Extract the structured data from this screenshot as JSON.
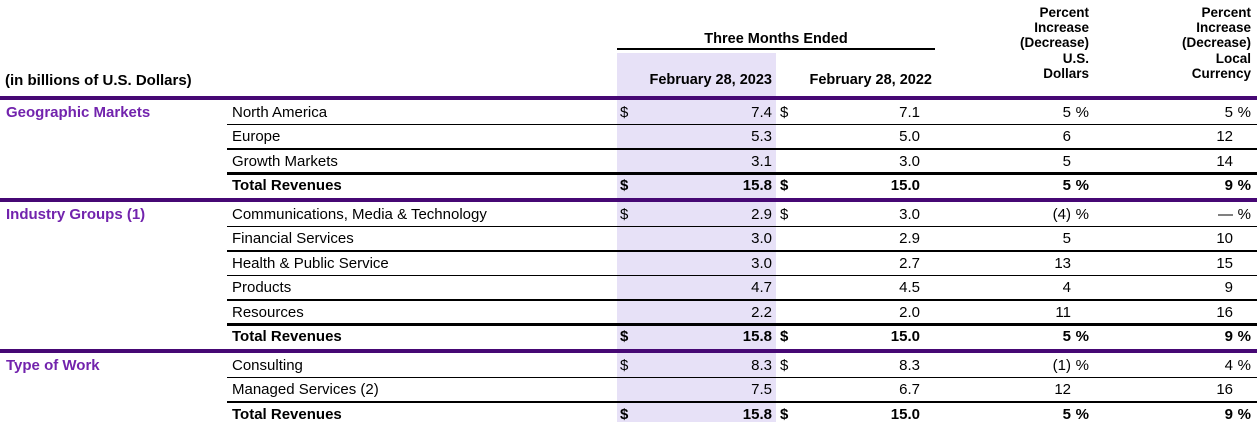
{
  "colors": {
    "section_text": "#7223AD",
    "rule_purple": "#460874",
    "column_highlight": "#E7E1F7",
    "row_line": "#000000"
  },
  "table": {
    "unit_label": "(in billions of U.S. Dollars)",
    "period_header": "Three Months Ended",
    "col_2023": "February 28, 2023",
    "col_2022": "February 28, 2022",
    "pct_usd_header_lines": [
      "Percent",
      "Increase",
      "(Decrease)",
      "U.S.",
      "Dollars"
    ],
    "pct_local_header_lines": [
      "Percent",
      "Increase",
      "(Decrease)",
      "Local",
      "Currency"
    ],
    "sections": [
      {
        "name": "Geographic Markets",
        "rows": [
          {
            "label": "North America",
            "d1": "$",
            "v1": "7.4",
            "d2": "$",
            "v2": "7.1",
            "p1": "5",
            "s1": "%",
            "p2": "5",
            "s2": "%"
          },
          {
            "label": "Europe",
            "v1": "5.3",
            "v2": "5.0",
            "p1": "6",
            "p2": "12"
          },
          {
            "label": "Growth Markets",
            "v1": "3.1",
            "v2": "3.0",
            "p1": "5",
            "p2": "14"
          },
          {
            "label": "Total Revenues",
            "d1": "$",
            "v1": "15.8",
            "d2": "$",
            "v2": "15.0",
            "p1": "5",
            "s1": "%",
            "p2": "9",
            "s2": "%"
          }
        ]
      },
      {
        "name": "Industry Groups (1)",
        "rows": [
          {
            "label": "Communications, Media & Technology",
            "d1": "$",
            "v1": "2.9",
            "d2": "$",
            "v2": "3.0",
            "p1": "(4)",
            "s1": "%",
            "p2": "—",
            "s2": "%"
          },
          {
            "label": "Financial Services",
            "v1": "3.0",
            "v2": "2.9",
            "p1": "5",
            "p2": "10"
          },
          {
            "label": "Health & Public Service",
            "v1": "3.0",
            "v2": "2.7",
            "p1": "13",
            "p2": "15"
          },
          {
            "label": "Products",
            "v1": "4.7",
            "v2": "4.5",
            "p1": "4",
            "p2": "9"
          },
          {
            "label": "Resources",
            "v1": "2.2",
            "v2": "2.0",
            "p1": "11",
            "p2": "16"
          },
          {
            "label": "Total Revenues",
            "d1": "$",
            "v1": "15.8",
            "d2": "$",
            "v2": "15.0",
            "p1": "5",
            "s1": "%",
            "p2": "9",
            "s2": "%"
          }
        ]
      },
      {
        "name": "Type of Work",
        "rows": [
          {
            "label": "Consulting",
            "d1": "$",
            "v1": "8.3",
            "d2": "$",
            "v2": "8.3",
            "p1": "(1)",
            "s1": "%",
            "p2": "4",
            "s2": "%"
          },
          {
            "label": "Managed Services (2)",
            "v1": "7.5",
            "v2": "6.7",
            "p1": "12",
            "p2": "16"
          },
          {
            "label": "Total Revenues",
            "d1": "$",
            "v1": "15.8",
            "d2": "$",
            "v2": "15.0",
            "p1": "5",
            "s1": "%",
            "p2": "9",
            "s2": "%"
          }
        ]
      }
    ]
  }
}
